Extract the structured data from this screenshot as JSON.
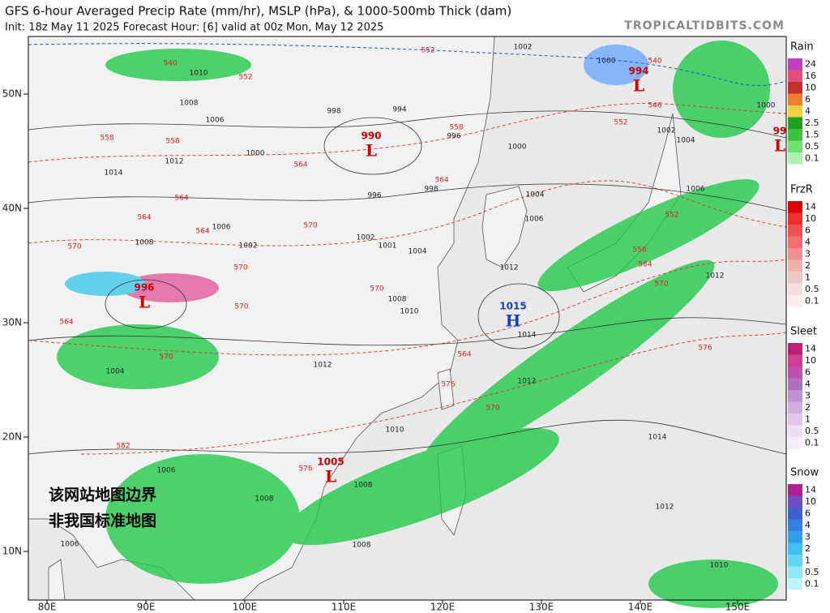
{
  "header": {
    "title": "GFS 6-hour Averaged Precip Rate (mm/hr), MSLP (hPa), & 1000-500mb Thick (dam)",
    "subtitle": "Init: 18z May 11 2025   Forecast Hour: [6]   valid at 00z Mon, May 12 2025",
    "site": "TROPICALTIDBITS.COM"
  },
  "axes": {
    "lat_labels": [
      "50N",
      "40N",
      "30N",
      "20N",
      "10N"
    ],
    "lon_labels": [
      "80E",
      "90E",
      "100E",
      "110E",
      "120E",
      "130E",
      "140E",
      "150E"
    ]
  },
  "legends": [
    {
      "title": "Rain",
      "labels": [
        "24",
        "16",
        "10",
        "6",
        "4",
        "2.5",
        "1.5",
        "0.5",
        "0.1"
      ]
    },
    {
      "title": "FrzR",
      "labels": [
        "14",
        "10",
        "6",
        "4",
        "3",
        "2",
        "1",
        "0.5",
        "0.1"
      ]
    },
    {
      "title": "Sleet",
      "labels": [
        "14",
        "10",
        "6",
        "4",
        "3",
        "2",
        "1",
        "0.5",
        "0.1"
      ]
    },
    {
      "title": "Snow",
      "labels": [
        "14",
        "10",
        "6",
        "4",
        "3",
        "2",
        "1",
        "0.5",
        "0.1"
      ]
    }
  ],
  "pressure_centers": [
    {
      "value": "990",
      "symbol": "L"
    },
    {
      "value": "994",
      "symbol": "L"
    },
    {
      "value": "996",
      "symbol": "L"
    },
    {
      "value": "1015",
      "symbol": "H"
    },
    {
      "value": "1005",
      "symbol": "L"
    },
    {
      "value": "99",
      "symbol": "L"
    }
  ],
  "isobar_labels": [
    "1010",
    "1008",
    "1006",
    "1012",
    "1014",
    "1008",
    "1006",
    "1002",
    "1000",
    "998",
    "994",
    "996",
    "1000",
    "1002",
    "1006",
    "1004",
    "1012",
    "1014",
    "1012",
    "1010",
    "1012",
    "1008",
    "1010",
    "1004",
    "1006",
    "1008",
    "1008",
    "1008",
    "1006",
    "1014",
    "1012",
    "1010",
    "1012",
    "1006",
    "1004",
    "1002",
    "1000",
    "1000",
    "1004",
    "996",
    "1002",
    "1001",
    "998"
  ],
  "thickness_labels": [
    "540",
    "552",
    "558",
    "558",
    "564",
    "564",
    "570",
    "564",
    "570",
    "570",
    "570",
    "570",
    "564",
    "564",
    "558",
    "552",
    "552",
    "552",
    "558",
    "564",
    "570",
    "576",
    "570",
    "576",
    "564",
    "576",
    "582",
    "570",
    "564",
    "540",
    "546"
  ],
  "watermark": [
    "该网站地图边界",
    "非我国标准地图"
  ]
}
